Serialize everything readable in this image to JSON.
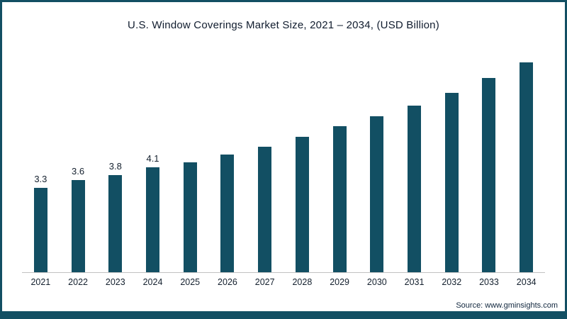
{
  "chart_data": {
    "type": "bar",
    "title": "U.S. Window Coverings Market Size, 2021 – 2034, (USD Billion)",
    "categories": [
      "2021",
      "2022",
      "2023",
      "2024",
      "2025",
      "2026",
      "2027",
      "2028",
      "2029",
      "2030",
      "2031",
      "2032",
      "2033",
      "2034"
    ],
    "values": [
      3.3,
      3.6,
      3.8,
      4.1,
      4.3,
      4.6,
      4.9,
      5.3,
      5.7,
      6.1,
      6.5,
      7.0,
      7.6,
      8.2
    ],
    "data_labels": [
      "3.3",
      "3.6",
      "3.8",
      "4.1",
      "",
      "",
      "",
      "",
      "",
      "",
      "",
      "",
      "",
      ""
    ],
    "xlabel": "",
    "ylabel": "",
    "ylim": [
      0,
      8.5
    ],
    "grid": false,
    "legend": "none",
    "bar_color": "#124f63",
    "source": "Source: www.gminsights.com"
  },
  "frame": {
    "border_color": "#124f63",
    "background_color": "#ffffff"
  }
}
